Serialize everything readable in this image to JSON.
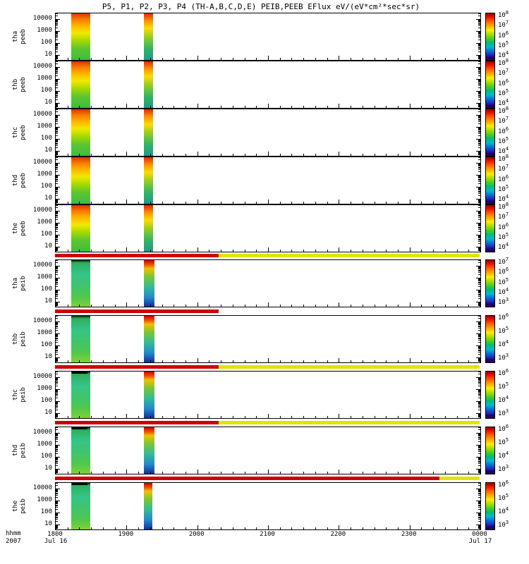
{
  "chart_data": {
    "type": "heatmap",
    "title": "P5, P1, P2, P3, P4 (TH-A,B,C,D,E) PEIB,PEEB EFlux eV/(eV*cm²*sec*sr)",
    "x_axis": {
      "unit_label": "hhmm",
      "year": "2007",
      "date_start": "Jul 16",
      "date_end": "Jul 17",
      "tick_labels": [
        "1800",
        "1900",
        "2000",
        "2100",
        "2200",
        "2300",
        "0000"
      ],
      "range_minutes": [
        0,
        360
      ]
    },
    "y_axis": {
      "scale": "log",
      "tick_labels": [
        "10000",
        "1000",
        "100",
        "10"
      ]
    },
    "colorbar_colors": [
      "#990000 0%",
      "#ee1100 8%",
      "#ff6600 18%",
      "#ffaa00 27%",
      "#ffee00 36%",
      "#aadd00 45%",
      "#44cc22 55%",
      "#00bb77 63%",
      "#00bbcc 72%",
      "#0077dd 80%",
      "#2233bb 88%",
      "#1a0077 95%",
      "#2e0048 100%"
    ],
    "gradients": {
      "peeb_a": [
        "#cc3a00 0%",
        "#f97700 12%",
        "#ffb300 26%",
        "#f2e800 42%",
        "#a8d900 58%",
        "#5cc72e 75%",
        "#3fbb3f 100%"
      ],
      "peeb_b": [
        "#dd2a00 0%",
        "#ff8c00 15%",
        "#ffdd00 32%",
        "#8fce1f 52%",
        "#2fb863 75%",
        "#1f9a8a 100%"
      ],
      "peib_a": [
        "#0d260d 0%",
        "#2db060 6%",
        "#36c487 30%",
        "#3fc46e 55%",
        "#52c84a 80%",
        "#7ed13a 100%"
      ],
      "peib_b": [
        "#cc0000 0%",
        "#ee5500 10%",
        "#f0c000 18%",
        "#7cc632 35%",
        "#33bb99 58%",
        "#2288cc 80%",
        "#12309a 100%"
      ]
    },
    "panels": [
      {
        "probe": "tha",
        "instrument": "peeb",
        "cb_exponents": [
          8,
          7,
          6,
          5,
          4
        ],
        "stripes": [
          {
            "x0": 0.036,
            "x1": 0.082,
            "gradient": "peeb_a"
          },
          {
            "x0": 0.208,
            "x1": 0.229,
            "gradient": "peeb_b"
          }
        ],
        "top_marks": []
      },
      {
        "probe": "thb",
        "instrument": "peeb",
        "cb_exponents": [
          8,
          7,
          6,
          5,
          4
        ],
        "stripes": [
          {
            "x0": 0.036,
            "x1": 0.082,
            "gradient": "peeb_a"
          },
          {
            "x0": 0.208,
            "x1": 0.229,
            "gradient": "peeb_b"
          }
        ],
        "top_marks": []
      },
      {
        "probe": "thc",
        "instrument": "peeb",
        "cb_exponents": [
          8,
          7,
          6,
          5,
          4
        ],
        "stripes": [
          {
            "x0": 0.036,
            "x1": 0.082,
            "gradient": "peeb_a"
          },
          {
            "x0": 0.208,
            "x1": 0.23,
            "gradient": "peeb_b"
          }
        ],
        "top_marks": []
      },
      {
        "probe": "thd",
        "instrument": "peeb",
        "cb_exponents": [
          8,
          7,
          6,
          5,
          4
        ],
        "stripes": [
          {
            "x0": 0.036,
            "x1": 0.082,
            "gradient": "peeb_a"
          },
          {
            "x0": 0.208,
            "x1": 0.23,
            "gradient": "peeb_b"
          }
        ],
        "top_marks": []
      },
      {
        "probe": "the",
        "instrument": "peeb",
        "cb_exponents": [
          8,
          7,
          6,
          5,
          4
        ],
        "stripes": [
          {
            "x0": 0.036,
            "x1": 0.082,
            "gradient": "peeb_a"
          },
          {
            "x0": 0.208,
            "x1": 0.23,
            "gradient": "peeb_b"
          }
        ],
        "top_marks": []
      },
      {
        "probe": "tha",
        "instrument": "peib",
        "cb_exponents": [
          7,
          6,
          5,
          4,
          3
        ],
        "stripes": [
          {
            "x0": 0.036,
            "x1": 0.082,
            "gradient": "peib_a"
          },
          {
            "x0": 0.207,
            "x1": 0.232,
            "gradient": "peib_b"
          }
        ],
        "top_marks": []
      },
      {
        "probe": "thb",
        "instrument": "peib",
        "cb_exponents": [
          6,
          5,
          4,
          3
        ],
        "stripes": [
          {
            "x0": 0.036,
            "x1": 0.082,
            "gradient": "peib_a"
          },
          {
            "x0": 0.207,
            "x1": 0.232,
            "gradient": "peib_b"
          }
        ],
        "top_marks": []
      },
      {
        "probe": "thc",
        "instrument": "peib",
        "cb_exponents": [
          6,
          5,
          4,
          3
        ],
        "stripes": [
          {
            "x0": 0.036,
            "x1": 0.082,
            "gradient": "peib_a"
          },
          {
            "x0": 0.207,
            "x1": 0.232,
            "gradient": "peib_b"
          }
        ],
        "top_marks": [
          [
            0.038,
            0.075
          ]
        ]
      },
      {
        "probe": "thd",
        "instrument": "peib",
        "cb_exponents": [
          6,
          5,
          4,
          3
        ],
        "stripes": [
          {
            "x0": 0.036,
            "x1": 0.082,
            "gradient": "peib_a"
          },
          {
            "x0": 0.207,
            "x1": 0.232,
            "gradient": "peib_b"
          }
        ],
        "top_marks": [
          [
            0.038,
            0.075
          ]
        ]
      },
      {
        "probe": "the",
        "instrument": "peib",
        "cb_exponents": [
          6,
          5,
          4,
          3
        ],
        "stripes": [
          {
            "x0": 0.036,
            "x1": 0.082,
            "gradient": "peib_a"
          },
          {
            "x0": 0.207,
            "x1": 0.228,
            "gradient": "peib_b"
          }
        ],
        "top_marks": [
          [
            0.038,
            0.075
          ]
        ]
      }
    ],
    "flag_bars": [
      {
        "position": "above-tha-peib",
        "segments": [
          {
            "x0": 0,
            "x1": 0.385,
            "color": "#cc0000"
          },
          {
            "x0": 0.385,
            "x1": 1,
            "color": "#e3e300"
          }
        ]
      },
      {
        "position": "above-thb-peib",
        "segments": [
          {
            "x0": 0,
            "x1": 0.385,
            "color": "#cc0000"
          }
        ]
      },
      {
        "position": "above-thc-peib",
        "segments": [
          {
            "x0": 0,
            "x1": 0.385,
            "color": "#cc0000"
          },
          {
            "x0": 0.385,
            "x1": 1,
            "color": "#e3e300"
          }
        ]
      },
      {
        "position": "above-thd-peib",
        "segments": [
          {
            "x0": 0,
            "x1": 0.385,
            "color": "#cc0000"
          },
          {
            "x0": 0.385,
            "x1": 1,
            "color": "#e3e300"
          }
        ]
      },
      {
        "position": "above-the-peib",
        "segments": [
          {
            "x0": 0,
            "x1": 0.905,
            "color": "#cc0000"
          },
          {
            "x0": 0.905,
            "x1": 1,
            "color": "#e3e300"
          }
        ]
      }
    ]
  }
}
